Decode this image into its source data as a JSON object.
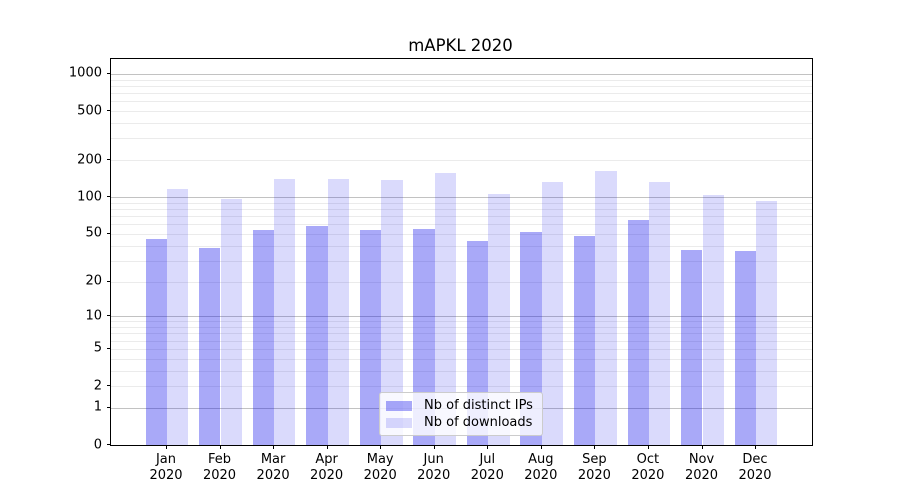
{
  "title": "mAPKL 2020",
  "legend": {
    "items": [
      {
        "label": "Nb of distinct IPs",
        "color": "rgba(10,10,235,0.35)"
      },
      {
        "label": "Nb of downloads",
        "color": "rgba(10,10,235,0.15)"
      }
    ]
  },
  "chart_data": {
    "type": "bar",
    "title": "mAPKL 2020",
    "categories": [
      "Jan",
      "Feb",
      "Mar",
      "Apr",
      "May",
      "Jun",
      "Jul",
      "Aug",
      "Sep",
      "Oct",
      "Nov",
      "Dec"
    ],
    "x_sublabel": "2020",
    "series": [
      {
        "name": "Nb of distinct IPs",
        "color": "rgba(10,10,235,0.35)",
        "values": [
          45,
          38,
          54,
          58,
          54,
          55,
          44,
          52,
          48,
          65,
          37,
          36
        ]
      },
      {
        "name": "Nb of downloads",
        "color": "rgba(10,10,235,0.15)",
        "values": [
          117,
          97,
          141,
          140,
          139,
          158,
          106,
          133,
          162,
          134,
          104,
          93
        ]
      }
    ],
    "yscale": "log1p",
    "yticks": [
      0,
      1,
      2,
      5,
      10,
      20,
      50,
      100,
      200,
      500,
      1000
    ],
    "ytick_labels": [
      "0",
      "1",
      "2",
      "5",
      "10",
      "20",
      "50",
      "100",
      "200",
      "500",
      "1000"
    ],
    "major_grid_values": [
      1,
      10,
      100,
      1000
    ],
    "minor_grid_values": [
      2,
      3,
      4,
      5,
      6,
      7,
      8,
      9,
      20,
      30,
      40,
      50,
      60,
      70,
      80,
      90,
      200,
      300,
      400,
      500,
      600,
      700,
      800,
      900
    ],
    "ylim": [
      0,
      1320
    ],
    "xlim_units": [
      -1.045,
      12.045
    ],
    "grid": true,
    "legend_position": "lower-center",
    "colors": {
      "major_grid": "#c2c2c2",
      "minor_grid": "#ebebeb",
      "axis": "#000000"
    }
  }
}
